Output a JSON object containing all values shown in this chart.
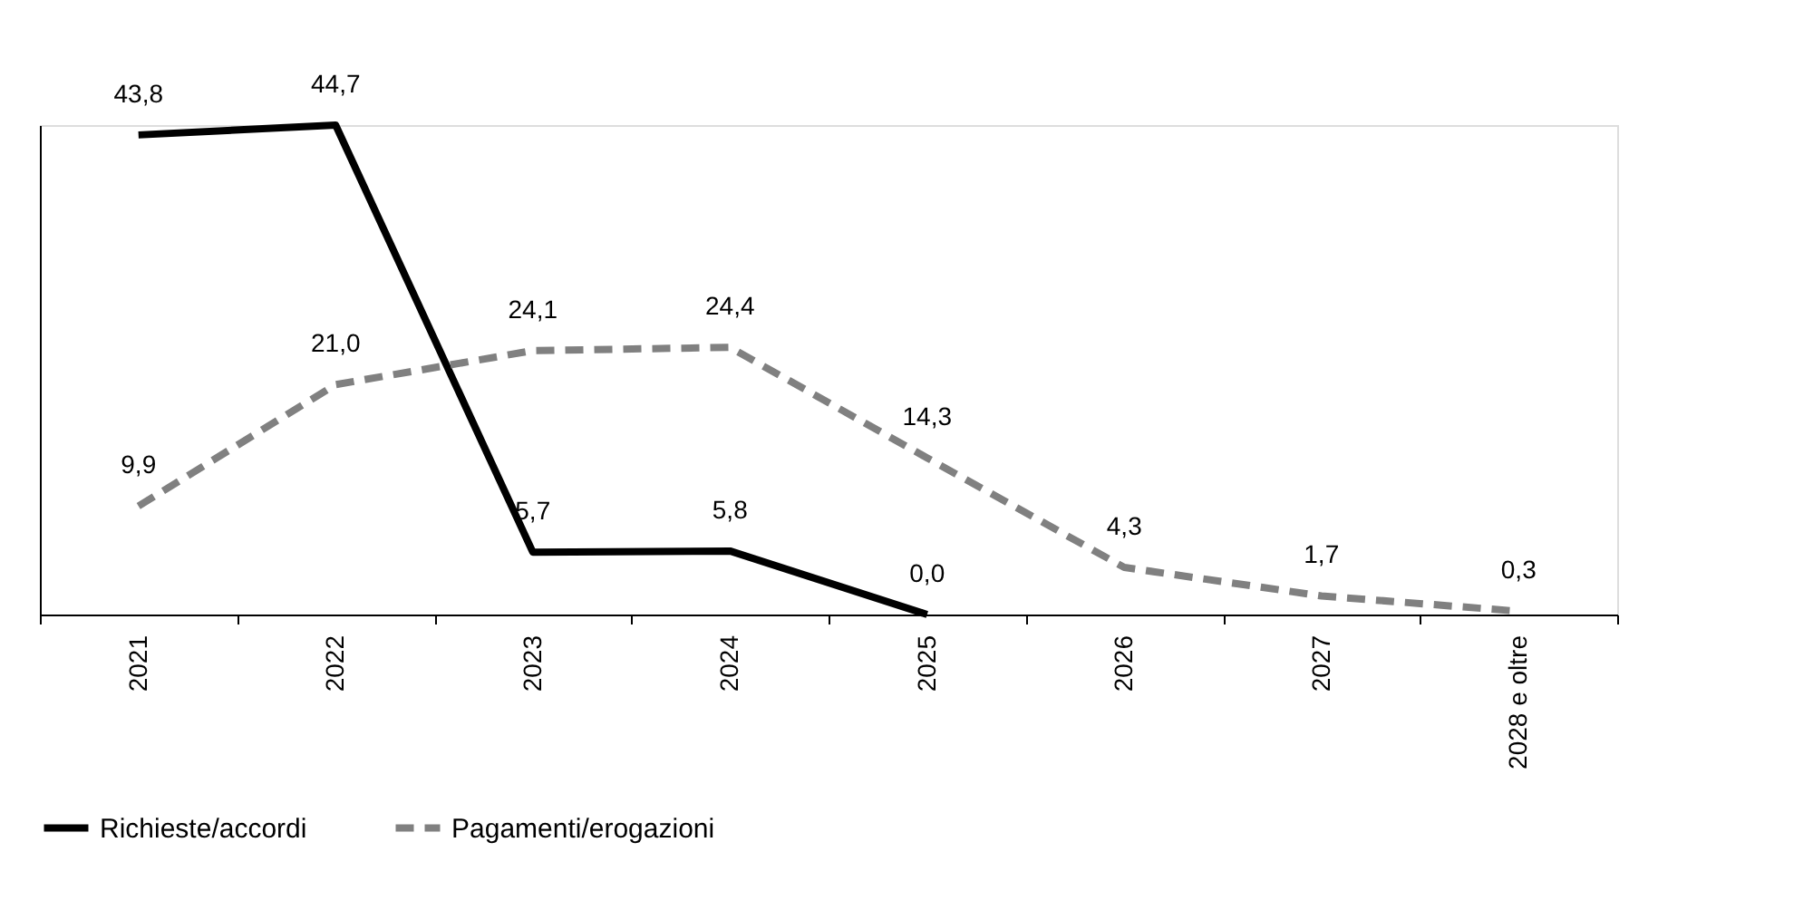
{
  "chart_data": {
    "type": "line",
    "categories": [
      "2021",
      "2022",
      "2023",
      "2024",
      "2025",
      "2026",
      "2027",
      "2028 e oltre"
    ],
    "series": [
      {
        "name": "Richieste/accordi",
        "color": "#000000",
        "line_style": "solid",
        "values": [
          43.8,
          44.7,
          5.7,
          5.8,
          0.0,
          null,
          null,
          null
        ],
        "value_labels": [
          "43,8",
          "44,7",
          "5,7",
          "5,8",
          "0,0",
          null,
          null,
          null
        ]
      },
      {
        "name": "Pagamenti/erogazioni",
        "color": "#808080",
        "line_style": "dashed",
        "values": [
          9.9,
          21.0,
          24.1,
          24.4,
          14.3,
          4.3,
          1.7,
          0.3
        ],
        "value_labels": [
          "9,9",
          "21,0",
          "24,1",
          "24,4",
          "14,3",
          "4,3",
          "1,7",
          "0,3"
        ]
      }
    ],
    "tick_labels": "x",
    "legend": "bottom",
    "grid": false
  }
}
